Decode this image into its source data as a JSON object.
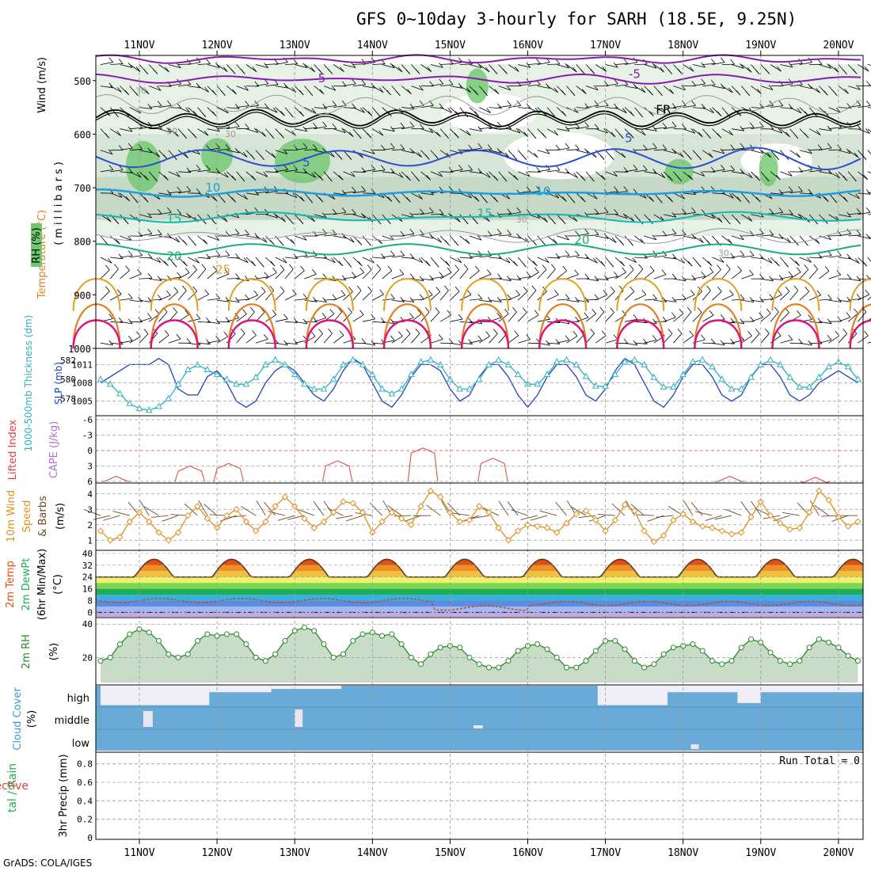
{
  "title": "GFS 0~10day 3-hourly for SARH (18.5E, 9.25N)",
  "footer": "GrADS: COLA/IGES",
  "date_labels": [
    "11NOV",
    "12NOV",
    "13NOV",
    "14NOV",
    "15NOV",
    "16NOV",
    "17NOV",
    "18NOV",
    "19NOV",
    "20NOV"
  ],
  "colors": {
    "grid": "#9a9a9a",
    "temp5": "#8b1ab0",
    "temp_blue": "#2a4fd0",
    "temp10": "#1c9fe0",
    "temp15": "#14b8b0",
    "temp20": "#18b070",
    "temp25": "#e0a020",
    "temp30": "#e08020",
    "temp35": "#e0107a",
    "freezing": "#000000",
    "rh_light": "#e6f2e6",
    "rh_mid": "#b8cdb8",
    "rh_dark": "#6fc86f",
    "slp": "#2040c0",
    "thickness": "#30b0c0",
    "lifted": "#e04040",
    "wind10m": "#e09020",
    "barb": "#6b4a2a",
    "rh2m": "#2a8a2a",
    "cloud": "#6aaad6"
  },
  "panels": {
    "upper": {
      "ylabel_wind": "Wind (m/s)",
      "ylabel_temp": "Temperature (°C)",
      "ylabel_rh": "RH (%)",
      "ylabel_mb": "(millibars)",
      "yticks": [
        "500",
        "600",
        "700",
        "800",
        "900",
        "1000"
      ],
      "contour_labels": [
        "5",
        "-5",
        "FR",
        "5",
        "5",
        "10",
        "10",
        "15",
        "15",
        "20",
        "20",
        "25",
        "30",
        "30",
        "30",
        "30",
        "30"
      ]
    },
    "slp": {
      "ylabel_slp": "SLP (mb)",
      "ylabel_thk": "1000-500mb Thickness (dm)",
      "slp_ticks": [
        "1011",
        "1008",
        "1005"
      ],
      "thk_ticks": [
        "582",
        "580",
        "578"
      ]
    },
    "cape": {
      "ylabel_li": "Lifted Index",
      "ylabel_cape": "CAPE (J/kg)",
      "yticks": [
        "-6",
        "-3",
        "0",
        "3",
        "6"
      ]
    },
    "wind10": {
      "ylabel_a": "10m Wind",
      "ylabel_b": "Speed",
      "ylabel_c": "& Barbs",
      "ylabel_d": "(m/s)",
      "yticks": [
        "4",
        "3",
        "2",
        "1"
      ]
    },
    "temp2m": {
      "ylabel_a": "2m Temp",
      "ylabel_b": "2m DewPt",
      "ylabel_c": "(6hr Min/Max)",
      "ylabel_d": "(°C)",
      "yticks": [
        "40",
        "32",
        "24",
        "16",
        "8",
        "0"
      ]
    },
    "rh2m": {
      "ylabel_a": "2m RH",
      "ylabel_b": "(%)",
      "yticks": [
        "40",
        "20"
      ]
    },
    "cloud": {
      "ylabel_a": "Cloud Cover",
      "ylabel_b": "(%)",
      "levels": [
        "high",
        "middle",
        "low"
      ]
    },
    "precip": {
      "ylabel_a": "tal / Rain",
      "ylabel_b": "Convective",
      "ylabel_c": "3hr Precip (mm)",
      "yticks": [
        "0.8",
        "0.6",
        "0.4",
        "0.2",
        "0"
      ],
      "run_total": "Run Total = 0"
    }
  },
  "chart_data": [
    {
      "type": "line",
      "title": "SLP (mb)",
      "note": "3-hourly series starting 10NOV ~12Z",
      "x_day_offset_start": -0.5,
      "x_step_days": 0.125,
      "ylim": [
        1003,
        1013
      ],
      "values": [
        1008,
        1009,
        1010,
        1011,
        1011,
        1011,
        1012,
        1011,
        1007,
        1006,
        1006,
        1009,
        1010,
        1008,
        1005,
        1004,
        1005,
        1008,
        1010,
        1011,
        1010,
        1008,
        1006,
        1005,
        1007,
        1010,
        1012,
        1011,
        1008,
        1005,
        1004,
        1006,
        1009,
        1011,
        1011,
        1010,
        1007,
        1005,
        1006,
        1009,
        1011,
        1011,
        1009,
        1006,
        1004,
        1006,
        1009,
        1011,
        1011,
        1009,
        1006,
        1005,
        1007,
        1010,
        1012,
        1011,
        1008,
        1005,
        1004,
        1006,
        1009,
        1011,
        1011,
        1009,
        1006,
        1005,
        1006,
        1009,
        1011,
        1011,
        1009,
        1006,
        1005,
        1006,
        1008,
        1009,
        1010,
        1009,
        1008,
        1007,
        1008,
        1009,
        1010,
        1011
      ]
    },
    {
      "type": "line",
      "title": "1000-500mb Thickness (dm)",
      "ylim": [
        576.5,
        582.8
      ],
      "values": [
        580,
        579.5,
        578.5,
        577.5,
        577,
        576.8,
        577.2,
        578,
        579.5,
        581,
        581.5,
        581,
        580.5,
        580,
        579.5,
        579.5,
        580.2,
        581.5,
        582,
        581.5,
        580.5,
        579.5,
        579,
        579,
        580,
        581.5,
        582,
        581.5,
        580.5,
        579,
        578.5,
        579,
        580.5,
        581.8,
        582,
        581.5,
        580,
        579,
        579,
        580,
        581.5,
        582,
        581.5,
        580.5,
        579.5,
        579.5,
        580.5,
        581.8,
        582,
        581.5,
        580.3,
        579.3,
        579.3,
        580.5,
        581.8,
        582,
        581.5,
        580.2,
        579.2,
        579.2,
        580.5,
        581.8,
        582,
        581.3,
        580,
        579,
        579,
        580.2,
        581.5,
        582,
        581.5,
        580.2,
        579.2,
        579.2,
        580.2,
        581.3,
        581.8,
        581.3,
        580,
        578.8,
        578.3,
        578.3,
        578.8,
        579
      ]
    },
    {
      "type": "line",
      "title": "10m Wind Speed (m/s)",
      "ylim": [
        0.5,
        4.5
      ],
      "values": [
        1.6,
        1,
        1.2,
        2.2,
        2.8,
        2.2,
        1.5,
        1,
        1.5,
        2.6,
        3.2,
        2.4,
        1.8,
        2.6,
        3,
        2.2,
        1.6,
        2.2,
        3.2,
        3.8,
        3.2,
        2.4,
        1.8,
        2.2,
        2.8,
        3.5,
        3.4,
        2.8,
        1.5,
        2.2,
        2.8,
        2.4,
        2,
        3.2,
        4.2,
        3.8,
        2.8,
        2.2,
        2.3,
        3.2,
        2.8,
        1.8,
        1,
        1.6,
        2,
        1.9,
        1.8,
        1.5,
        2.1,
        2.7,
        2.9,
        2.3,
        1.6,
        2.3,
        3.3,
        2.9,
        1.6,
        0.9,
        1.3,
        2.3,
        2.7,
        2.2,
        1.9,
        1.8,
        1.6,
        1.4,
        1.5,
        2.5,
        3.5,
        2.6,
        2.1,
        1.7,
        1.8,
        2.8,
        4.2,
        3.6,
        2.5,
        1.9,
        2.2,
        2.9,
        3.3,
        2.3,
        1.7,
        1.9,
        2.7
      ]
    },
    {
      "type": "line",
      "title": "2m RH (%)",
      "ylim": [
        5,
        42
      ],
      "values": [
        18,
        20,
        28,
        34,
        37,
        35,
        30,
        22,
        20,
        22,
        30,
        34,
        33,
        34,
        34,
        28,
        20,
        18,
        22,
        30,
        36,
        38,
        36,
        28,
        20,
        22,
        30,
        34,
        35,
        33,
        34,
        28,
        20,
        16,
        22,
        26,
        27,
        26,
        20,
        16,
        14,
        14,
        18,
        24,
        27,
        28,
        25,
        20,
        14,
        14,
        18,
        24,
        30,
        30,
        25,
        18,
        14,
        16,
        22,
        26,
        27,
        28,
        24,
        18,
        16,
        18,
        26,
        31,
        29,
        23,
        18,
        16,
        18,
        26,
        31,
        29,
        26,
        21,
        18,
        20,
        26,
        29,
        28,
        26,
        24
      ]
    },
    {
      "type": "bar",
      "title": "3hr Precip (mm)",
      "ylim": [
        0,
        0.9
      ],
      "values": [],
      "run_total": 0
    }
  ]
}
